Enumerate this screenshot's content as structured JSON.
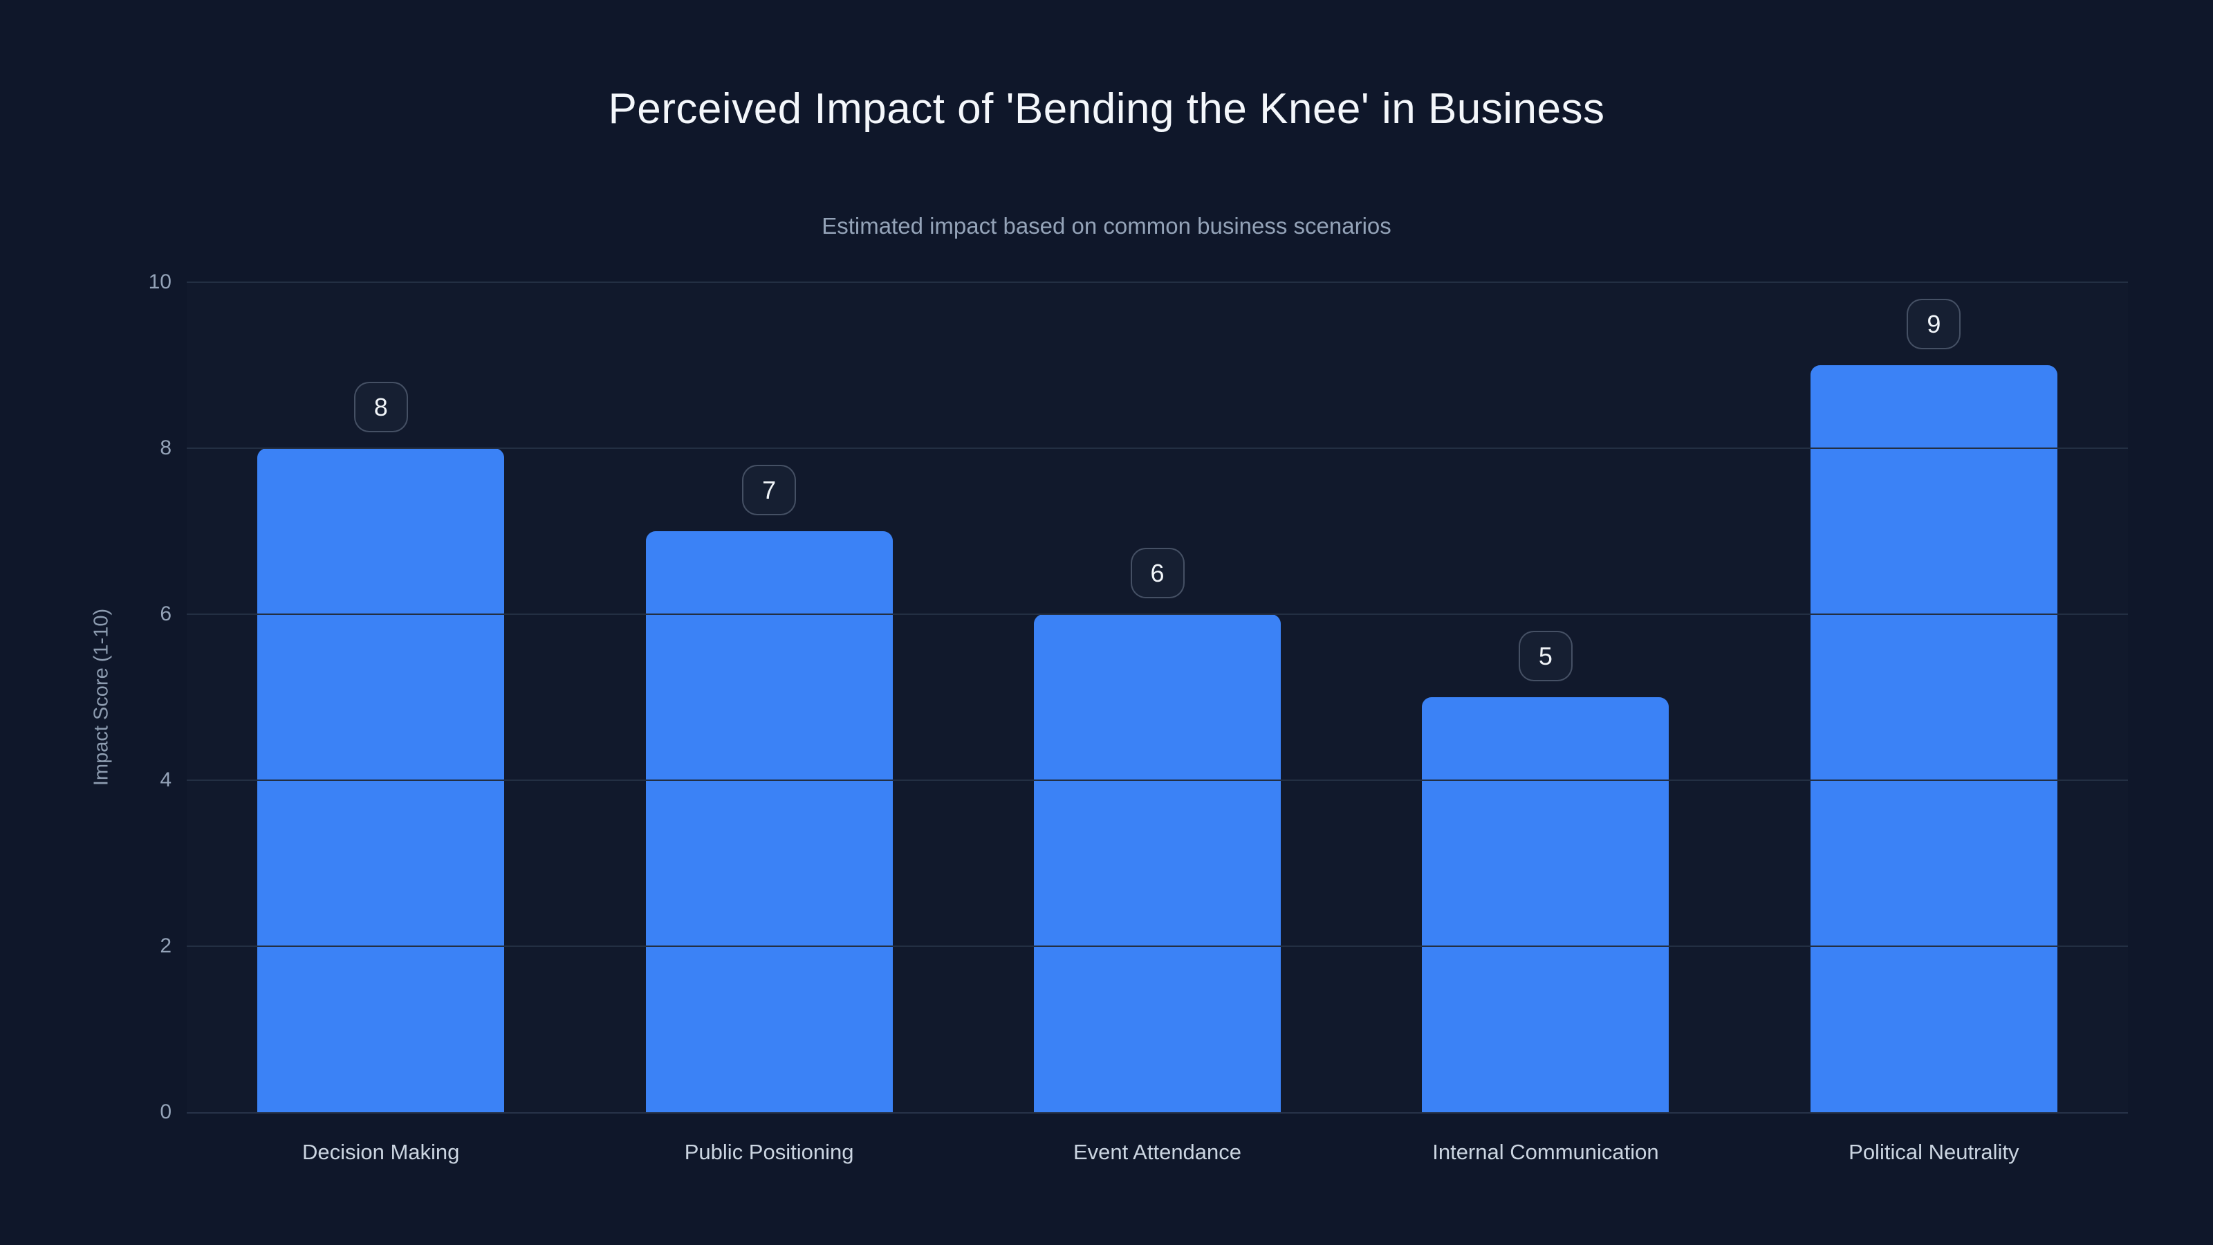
{
  "chart": {
    "title": "Perceived Impact of 'Bending the Knee' in Business",
    "subtitle": "Estimated impact based on common business scenarios",
    "ylabel": "Impact Score (1-10)"
  },
  "colors": {
    "background": "#0f172a",
    "bar": "#3b82f6",
    "title_text": "#f4f7fb",
    "subtitle_text": "#94a3b8",
    "gridline": "#232f43",
    "x_label_text": "#cbd5e1",
    "y_tick_text": "#94a3b8",
    "badge_border": "#475569",
    "badge_text": "#f1f5f9"
  },
  "chart_data": {
    "type": "bar",
    "title": "Perceived Impact of 'Bending the Knee' in Business",
    "subtitle": "Estimated impact based on common business scenarios",
    "xlabel": "",
    "ylabel": "Impact Score (1-10)",
    "categories": [
      "Decision Making",
      "Public Positioning",
      "Event Attendance",
      "Internal Communication",
      "Political Neutrality"
    ],
    "values": [
      8,
      7,
      6,
      5,
      9
    ],
    "ylim": [
      0,
      10
    ],
    "yticks": [
      0,
      2,
      4,
      6,
      8,
      10
    ],
    "grid": "horizontal-only",
    "legend": "none",
    "value_labels": "badge above each bar"
  }
}
